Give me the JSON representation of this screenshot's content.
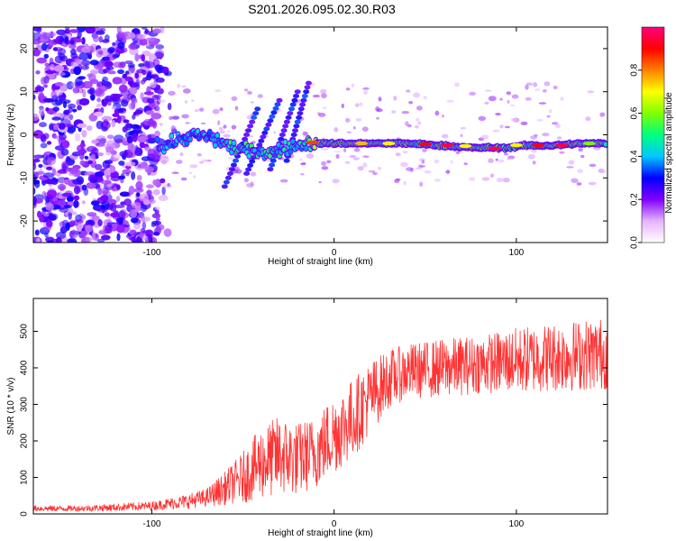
{
  "figure_title": "S201.2026.095.02.30.R03",
  "chart_data": [
    {
      "type": "heatmap",
      "title": "",
      "xlabel": "Height of straight line (km)",
      "ylabel": "Frequency (Hz)",
      "xlim": [
        -165,
        150
      ],
      "ylim": [
        -25,
        25
      ],
      "xticks": [
        -100,
        0,
        100
      ],
      "xtick_labels": [
        "-100",
        "0",
        "100"
      ],
      "yticks": [
        -20,
        -10,
        0,
        10,
        20
      ],
      "ytick_labels": [
        "-20",
        "-10",
        "0",
        "10",
        "20"
      ],
      "ridge": {
        "description_points": [
          [
            -95,
            -3
          ],
          [
            -85,
            -1
          ],
          [
            -75,
            0
          ],
          [
            -65,
            -1
          ],
          [
            -55,
            -3
          ],
          [
            -45,
            -4
          ],
          [
            -35,
            -4
          ],
          [
            -25,
            -3
          ],
          [
            -15,
            -2
          ],
          [
            -5,
            -2
          ],
          [
            0,
            -2
          ],
          [
            10,
            -2
          ],
          [
            20,
            -2
          ],
          [
            40,
            -2
          ],
          [
            60,
            -2.5
          ],
          [
            75,
            -3
          ],
          [
            85,
            -3
          ],
          [
            95,
            -3
          ],
          [
            105,
            -2.5
          ],
          [
            120,
            -2.5
          ],
          [
            135,
            -2
          ],
          [
            148,
            -2
          ]
        ]
      },
      "colorbar": {
        "label": "Normalized spectral amplitude",
        "ticks": [
          0.0,
          0.2,
          0.4,
          0.6,
          0.8
        ],
        "tick_labels": [
          "0.0",
          "0.2",
          "0.4",
          "0.6",
          "0.8"
        ],
        "range": [
          0,
          1
        ],
        "colors": [
          "#ffffff",
          "#e6b3ff",
          "#8000ff",
          "#0000ff",
          "#00c8ff",
          "#00ff80",
          "#80ff00",
          "#ffff00",
          "#ff8000",
          "#ff0000",
          "#ff0080"
        ]
      }
    },
    {
      "type": "line",
      "title": "",
      "xlabel": "Height of straight line (km)",
      "ylabel": "SNR (10 * v/v)",
      "xlim": [
        -165,
        150
      ],
      "ylim": [
        0,
        590
      ],
      "xticks": [
        -100,
        0,
        100
      ],
      "xtick_labels": [
        "-100",
        "0",
        "100"
      ],
      "yticks": [
        0,
        100,
        200,
        300,
        400,
        500
      ],
      "ytick_labels": [
        "0",
        "100",
        "200",
        "300",
        "400",
        "500"
      ],
      "series": [
        {
          "name": "SNR",
          "color": "#ff3333",
          "trend_x": [
            -165,
            -140,
            -120,
            -100,
            -80,
            -70,
            -60,
            -50,
            -40,
            -30,
            -20,
            -10,
            0,
            10,
            20,
            30,
            40,
            60,
            80,
            100,
            120,
            150
          ],
          "trend_y": [
            15,
            15,
            18,
            22,
            35,
            45,
            70,
            100,
            140,
            160,
            150,
            170,
            220,
            260,
            320,
            370,
            390,
            400,
            410,
            420,
            430,
            440
          ],
          "noise_amplitude": [
            8,
            8,
            10,
            12,
            20,
            25,
            45,
            70,
            100,
            110,
            100,
            100,
            110,
            110,
            100,
            80,
            75,
            80,
            80,
            90,
            95,
            100
          ]
        }
      ]
    }
  ]
}
